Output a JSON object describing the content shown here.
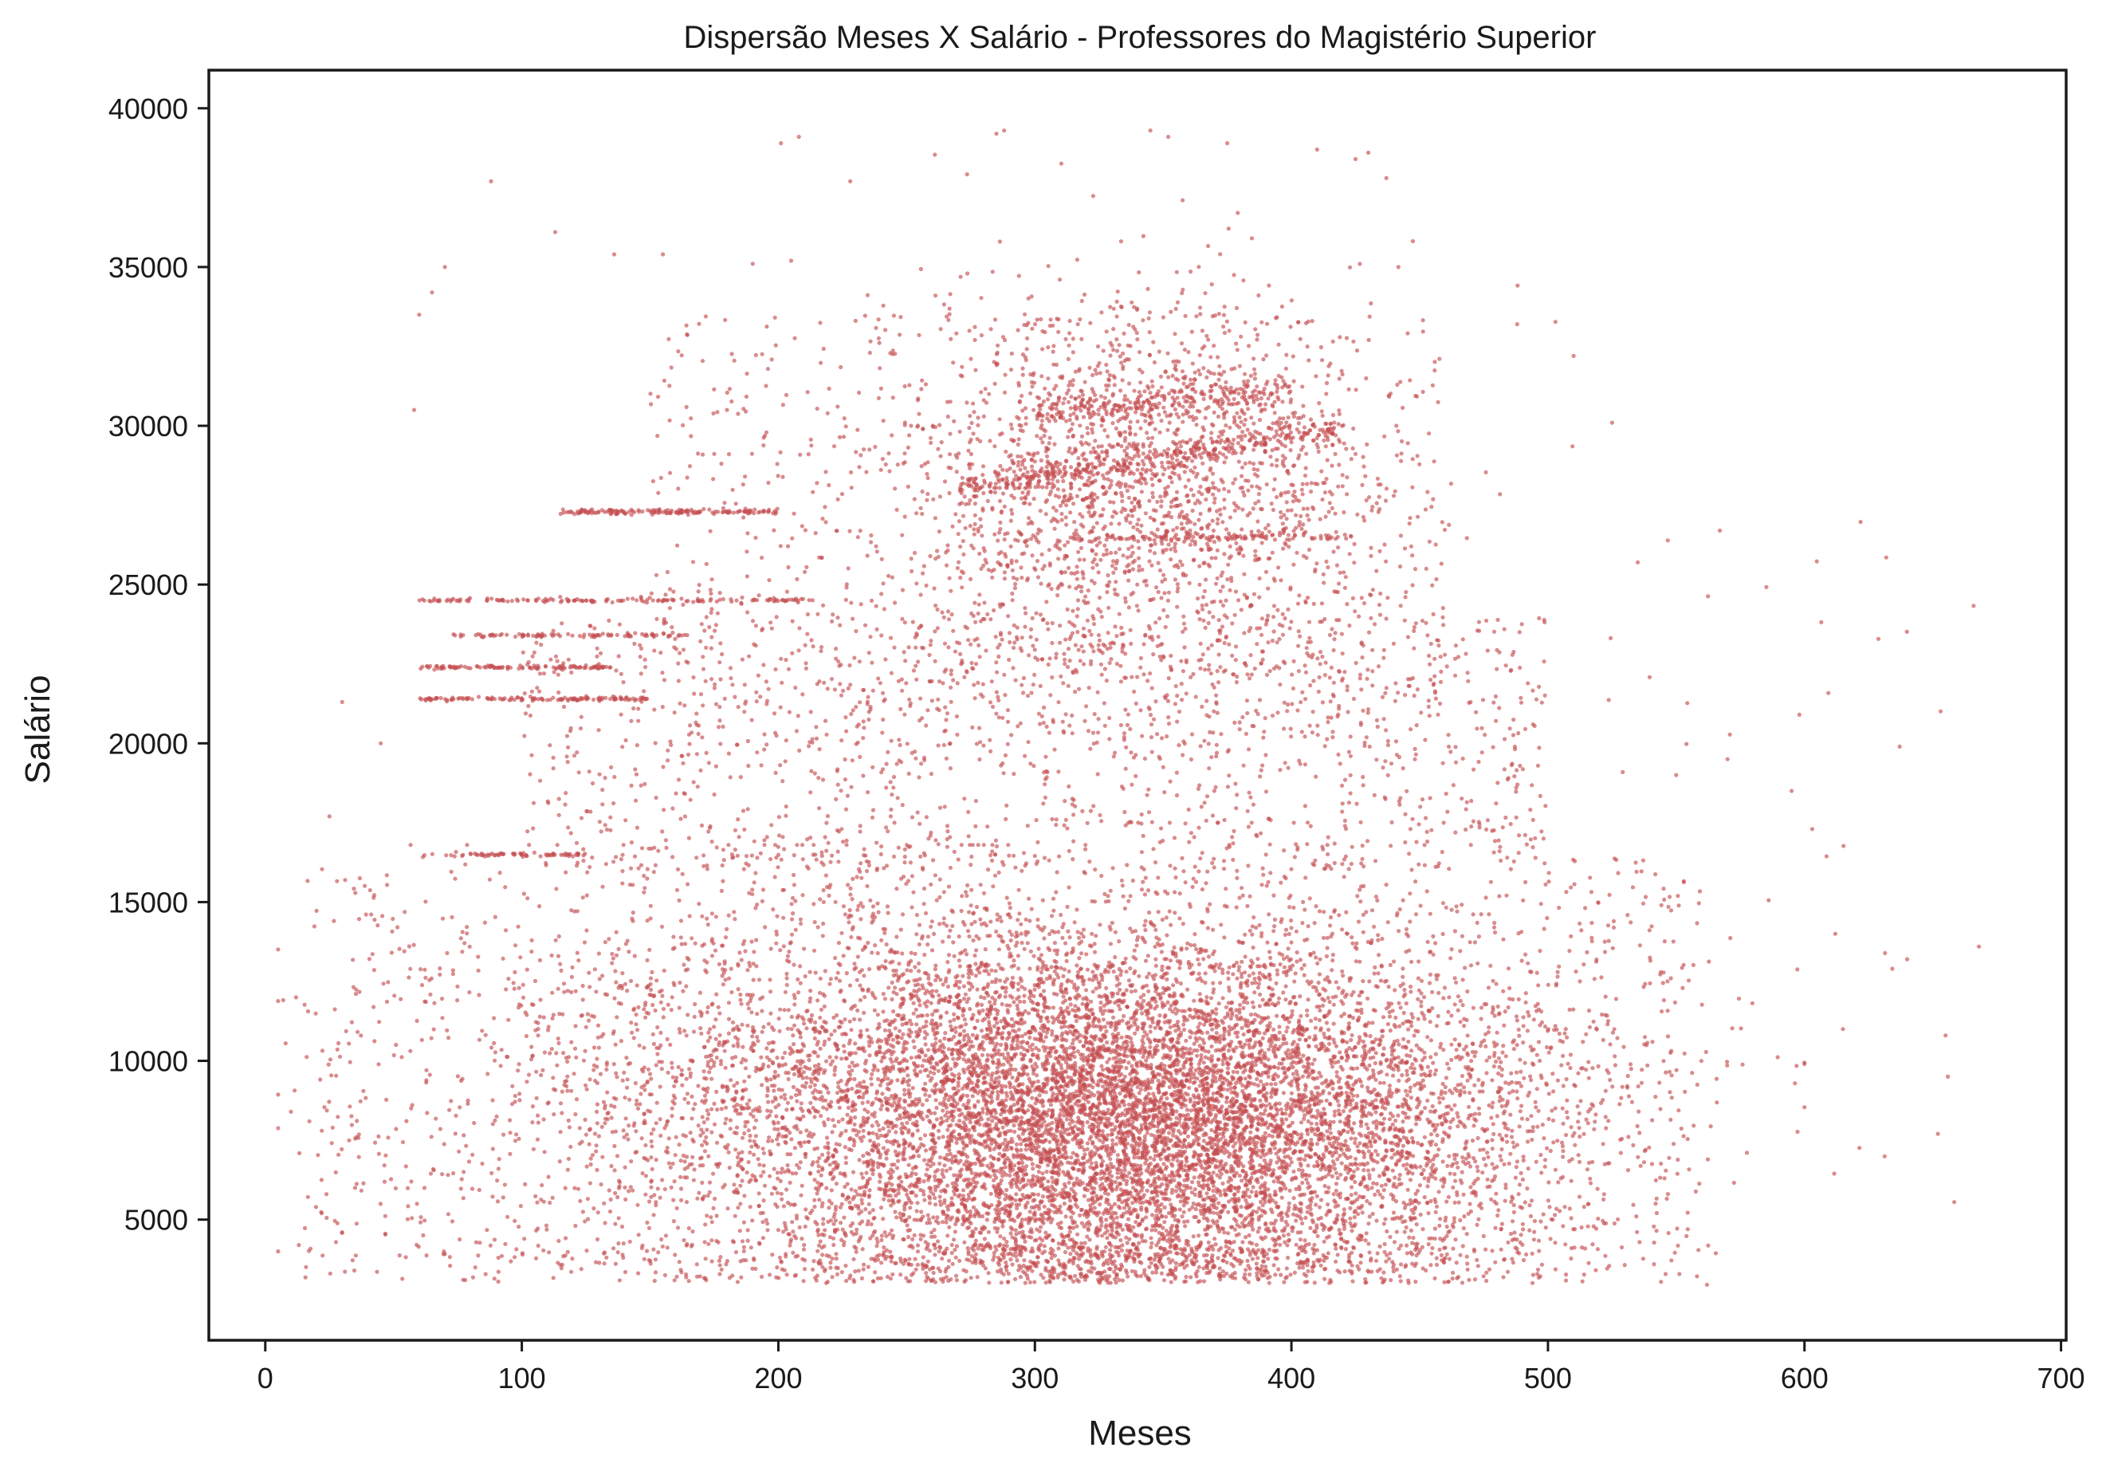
{
  "chart_data": {
    "type": "scatter",
    "title": "Dispersão Meses X Salário - Professores do Magistério Superior",
    "xlabel": "Meses",
    "ylabel": "Salário",
    "xlim": [
      -22,
      702
    ],
    "ylim": [
      1200,
      41200
    ],
    "xticks": [
      0,
      100,
      200,
      300,
      400,
      500,
      600,
      700
    ],
    "yticks": [
      5000,
      10000,
      15000,
      20000,
      25000,
      30000,
      35000,
      40000
    ],
    "grid": false,
    "point_color": "#c44e52",
    "point_alpha": 0.65,
    "clusters": [
      {
        "kind": "gauss",
        "n": 6500,
        "x_mean": 330,
        "x_sd": 58,
        "y_mean": 8200,
        "y_sd": 3000,
        "y_min": 3000,
        "y_max": 17500
      },
      {
        "kind": "gauss",
        "n": 2600,
        "x_mean": 230,
        "x_sd": 75,
        "y_mean": 8500,
        "y_sd": 3300,
        "y_min": 3000,
        "y_max": 16800
      },
      {
        "kind": "gauss",
        "n": 2200,
        "x_mean": 420,
        "x_sd": 60,
        "y_mean": 8000,
        "y_sd": 3000,
        "y_min": 3000,
        "y_max": 16800
      },
      {
        "kind": "uniform",
        "n": 1500,
        "x_min": 15,
        "x_max": 560,
        "y_min": 3000,
        "y_max": 16500
      },
      {
        "kind": "uniform",
        "n": 1200,
        "x_min": 100,
        "x_max": 500,
        "y_min": 16000,
        "y_max": 24000
      },
      {
        "kind": "gauss",
        "n": 1800,
        "x_mean": 340,
        "x_sd": 45,
        "y_mean": 28000,
        "y_sd": 3000,
        "y_min": 18000,
        "y_max": 39300
      },
      {
        "kind": "uniform",
        "n": 900,
        "x_min": 150,
        "x_max": 460,
        "y_min": 20000,
        "y_max": 33500
      },
      {
        "kind": "band",
        "n": 380,
        "x_min": 270,
        "x_max": 420,
        "y0": 28000,
        "y1": 30000,
        "jitter": 200
      },
      {
        "kind": "band",
        "n": 260,
        "x_min": 300,
        "x_max": 400,
        "y0": 30500,
        "y1": 31000,
        "jitter": 250
      },
      {
        "kind": "band",
        "n": 160,
        "x_min": 115,
        "x_max": 200,
        "y0": 27300,
        "y1": 27300,
        "jitter": 40
      },
      {
        "kind": "band",
        "n": 130,
        "x_min": 60,
        "x_max": 150,
        "y0": 21400,
        "y1": 21400,
        "jitter": 30
      },
      {
        "kind": "band",
        "n": 110,
        "x_min": 60,
        "x_max": 135,
        "y0": 22400,
        "y1": 22400,
        "jitter": 30
      },
      {
        "kind": "band",
        "n": 90,
        "x_min": 70,
        "x_max": 165,
        "y0": 23400,
        "y1": 23400,
        "jitter": 30
      },
      {
        "kind": "band",
        "n": 150,
        "x_min": 60,
        "x_max": 210,
        "y0": 24500,
        "y1": 24500,
        "jitter": 30
      },
      {
        "kind": "band",
        "n": 80,
        "x_min": 330,
        "x_max": 425,
        "y0": 26500,
        "y1": 26500,
        "jitter": 60
      },
      {
        "kind": "band",
        "n": 70,
        "x_min": 60,
        "x_max": 125,
        "y0": 16500,
        "y1": 16500,
        "jitter": 30
      },
      {
        "kind": "uniform",
        "n": 35,
        "x_min": 520,
        "x_max": 670,
        "y_min": 5500,
        "y_max": 27000
      }
    ],
    "points": [
      [
        12,
        12000
      ],
      [
        10,
        8400
      ],
      [
        22,
        5200
      ],
      [
        30,
        4600
      ],
      [
        35,
        6000
      ],
      [
        45,
        20000
      ],
      [
        30,
        21300
      ],
      [
        25,
        17700
      ],
      [
        58,
        30500
      ],
      [
        60,
        33500
      ],
      [
        65,
        34200
      ],
      [
        70,
        35000
      ],
      [
        88,
        37700
      ],
      [
        113,
        36100
      ],
      [
        136,
        35400
      ],
      [
        155,
        35400
      ],
      [
        190,
        35100
      ],
      [
        205,
        35200
      ],
      [
        201,
        38900
      ],
      [
        208,
        39100
      ],
      [
        228,
        37700
      ],
      [
        285,
        39200
      ],
      [
        288,
        39300
      ],
      [
        345,
        39300
      ],
      [
        352,
        39100
      ],
      [
        375,
        38900
      ],
      [
        410,
        38700
      ],
      [
        425,
        38400
      ],
      [
        430,
        38600
      ],
      [
        437,
        37800
      ],
      [
        488,
        33200
      ],
      [
        510,
        32200
      ],
      [
        525,
        30100
      ],
      [
        535,
        25700
      ],
      [
        567,
        26700
      ],
      [
        598,
        20900
      ],
      [
        603,
        17300
      ],
      [
        612,
        14000
      ],
      [
        615,
        11000
      ],
      [
        640,
        13200
      ],
      [
        668,
        13600
      ],
      [
        655,
        10800
      ],
      [
        600,
        9900
      ],
      [
        652,
        7700
      ],
      [
        562,
        2950
      ],
      [
        550,
        19000
      ],
      [
        570,
        19500
      ],
      [
        595,
        18500
      ]
    ]
  }
}
